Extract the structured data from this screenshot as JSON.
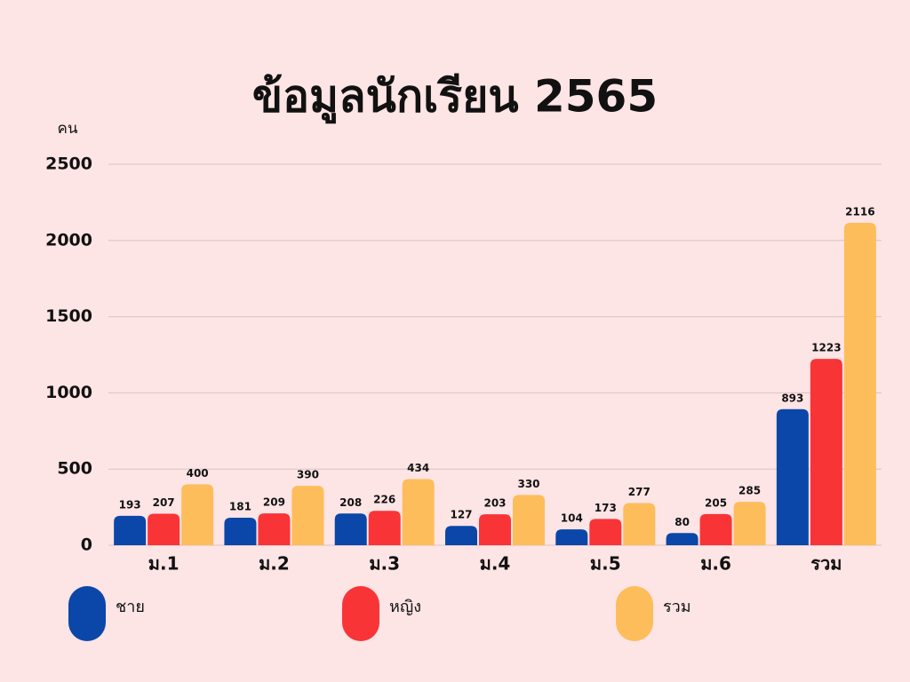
{
  "chart_data": {
    "type": "bar",
    "title": "ข้อมูลนักเรียน 2565",
    "y_label": "คน",
    "categories": [
      "ม.1",
      "ม.2",
      "ม.3",
      "ม.4",
      "ม.5",
      "ม.6",
      "รวม"
    ],
    "series": [
      {
        "name": "ชาย",
        "color": "#0a47a9",
        "values": [
          193,
          181,
          208,
          127,
          104,
          80,
          893
        ]
      },
      {
        "name": "หญิง",
        "color": "#f93437",
        "values": [
          207,
          209,
          226,
          203,
          173,
          205,
          1223
        ]
      },
      {
        "name": "รวม",
        "color": "#fdbd5a",
        "values": [
          400,
          390,
          434,
          330,
          277,
          285,
          2116
        ]
      }
    ],
    "ylim": [
      0,
      2500
    ],
    "yticks": [
      0,
      500,
      1000,
      1500,
      2000,
      2500
    ],
    "grid": true
  }
}
